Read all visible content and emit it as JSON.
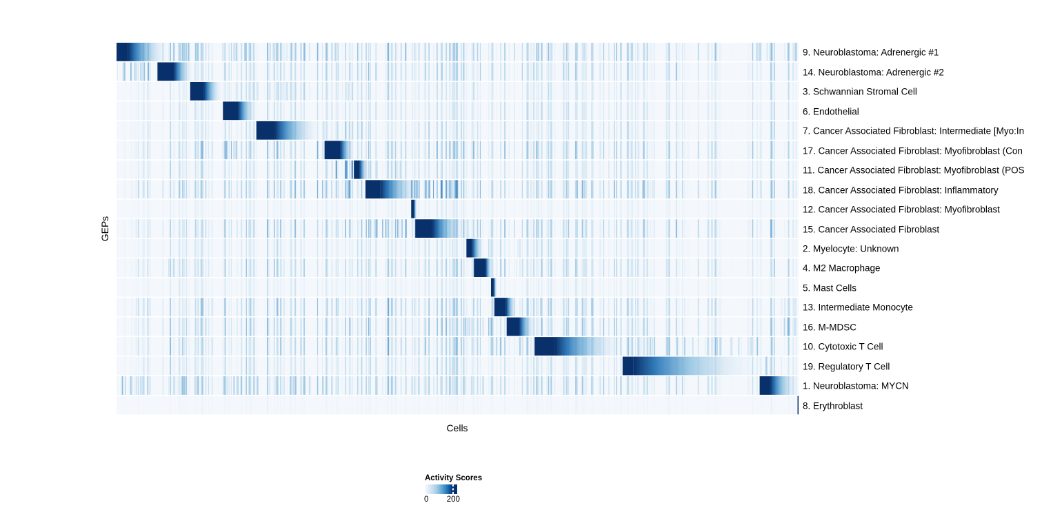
{
  "figure": {
    "background": "#ffffff"
  },
  "legend": {
    "title": "Activity Scores",
    "min_label": "0",
    "tick_label": "200",
    "tick_fraction": 0.88,
    "gradient_stops": [
      [
        0,
        "#f7fbff"
      ],
      [
        0.12,
        "#deebf7"
      ],
      [
        0.25,
        "#c6dbef"
      ],
      [
        0.38,
        "#9ecae1"
      ],
      [
        0.5,
        "#6baed6"
      ],
      [
        0.6,
        "#4292c6"
      ],
      [
        0.7,
        "#2171b5"
      ],
      [
        0.78,
        "#08519c"
      ],
      [
        0.86,
        "#08306b"
      ],
      [
        1,
        "#08306b"
      ]
    ]
  },
  "chart_data": {
    "type": "heatmap",
    "title": "",
    "xlabel": "Cells",
    "ylabel": "GEPs",
    "colormap": "Blues",
    "colorbar": {
      "label": "Activity Scores",
      "min": 0,
      "tick": 200
    },
    "background": "#f4f8fc",
    "dark_color": "#08306b",
    "seed": 13,
    "striation_base": 0.18,
    "striation_bands": [
      {
        "center": 0.1,
        "width": 0.1,
        "strength": 0.45
      },
      {
        "center": 0.25,
        "width": 0.09,
        "strength": 0.4
      },
      {
        "center": 0.4,
        "width": 0.09,
        "strength": 0.45
      },
      {
        "center": 0.53,
        "width": 0.06,
        "strength": 0.5
      },
      {
        "center": 0.63,
        "width": 0.05,
        "strength": 0.45
      },
      {
        "center": 0.72,
        "width": 0.05,
        "strength": 0.4
      },
      {
        "center": 0.81,
        "width": 0.05,
        "strength": 0.5
      },
      {
        "center": 0.91,
        "width": 0.035,
        "strength": 0.55
      },
      {
        "center": 0.975,
        "width": 0.025,
        "strength": 0.65
      }
    ],
    "rows": [
      {
        "label": "9. Neuroblastoma: Adrenergic #1",
        "block": {
          "start": 0.0,
          "dark_end": 0.017,
          "tail_end": 0.077
        },
        "noise": 0.85,
        "clusters": [
          {
            "start": 0.03,
            "end": 0.33,
            "strength": 0.5
          },
          {
            "start": 0.93,
            "end": 1.0,
            "strength": 0.45
          }
        ]
      },
      {
        "label": "14. Neuroblastoma: Adrenergic #2",
        "block": {
          "start": 0.06,
          "dark_end": 0.084,
          "tail_end": 0.112
        },
        "noise": 0.75,
        "clusters": [
          {
            "start": 0.0,
            "end": 0.058,
            "strength": 0.65
          }
        ]
      },
      {
        "label": "3. Schwannian Stromal Cell",
        "block": {
          "start": 0.108,
          "dark_end": 0.128,
          "tail_end": 0.155
        },
        "noise": 0.5,
        "clusters": [
          {
            "start": 0.16,
            "end": 0.35,
            "strength": 0.3
          }
        ]
      },
      {
        "label": "6. Endothelial",
        "block": {
          "start": 0.156,
          "dark_end": 0.178,
          "tail_end": 0.205
        },
        "noise": 0.55,
        "clusters": []
      },
      {
        "label": "7. Cancer Associated Fibroblast: Intermediate [Myo:In",
        "block": {
          "start": 0.205,
          "dark_end": 0.232,
          "tail_end": 0.299
        },
        "noise": 0.6,
        "clusters": [
          {
            "start": 0.3,
            "end": 0.37,
            "strength": 0.35
          }
        ]
      },
      {
        "label": "17. Cancer Associated Fibroblast: Myofibroblast (Con",
        "block": {
          "start": 0.305,
          "dark_end": 0.328,
          "tail_end": 0.349
        },
        "noise": 0.85,
        "clusters": [
          {
            "start": 0.145,
            "end": 0.175,
            "strength": 0.75
          },
          {
            "start": 0.29,
            "end": 0.305,
            "strength": 0.5
          }
        ]
      },
      {
        "label": "11. Cancer Associated Fibroblast: Myofibroblast (POS",
        "block": {
          "start": 0.348,
          "dark_end": 0.356,
          "tail_end": 0.37
        },
        "noise": 0.6,
        "clusters": [
          {
            "start": 0.315,
            "end": 0.345,
            "strength": 0.85
          },
          {
            "start": 0.37,
            "end": 0.43,
            "strength": 0.4
          }
        ]
      },
      {
        "label": "18. Cancer Associated Fibroblast: Inflammatory",
        "block": {
          "start": 0.365,
          "dark_end": 0.387,
          "tail_end": 0.448
        },
        "noise": 0.95,
        "clusters": [
          {
            "start": 0.3,
            "end": 0.35,
            "strength": 0.6
          },
          {
            "start": 0.43,
            "end": 0.5,
            "strength": 0.8
          },
          {
            "start": 0.77,
            "end": 0.8,
            "strength": 0.4
          }
        ]
      },
      {
        "label": "12. Cancer Associated Fibroblast: Myofibroblast",
        "block": {
          "start": 0.432,
          "dark_end": 0.436,
          "tail_end": 0.441
        },
        "noise": 0.3,
        "clusters": []
      },
      {
        "label": "15. Cancer Associated Fibroblast",
        "block": {
          "start": 0.438,
          "dark_end": 0.463,
          "tail_end": 0.512
        },
        "noise": 0.85,
        "clusters": [
          {
            "start": 0.36,
            "end": 0.43,
            "strength": 0.7
          },
          {
            "start": 0.51,
            "end": 0.56,
            "strength": 0.45
          }
        ]
      },
      {
        "label": "2. Myelocyte: Unknown",
        "block": {
          "start": 0.513,
          "dark_end": 0.521,
          "tail_end": 0.539
        },
        "noise": 0.5,
        "clusters": [
          {
            "start": 0.54,
            "end": 0.6,
            "strength": 0.4
          }
        ]
      },
      {
        "label": "4. M2 Macrophage",
        "block": {
          "start": 0.524,
          "dark_end": 0.541,
          "tail_end": 0.552
        },
        "noise": 0.7,
        "clusters": [
          {
            "start": 0.555,
            "end": 0.595,
            "strength": 0.7
          },
          {
            "start": 0.06,
            "end": 0.09,
            "strength": 0.4
          }
        ]
      },
      {
        "label": "5. Mast Cells",
        "block": {
          "start": 0.549,
          "dark_end": 0.553,
          "tail_end": 0.558
        },
        "noise": 0.35,
        "clusters": []
      },
      {
        "label": "13. Intermediate Monocyte",
        "block": {
          "start": 0.554,
          "dark_end": 0.571,
          "tail_end": 0.587
        },
        "noise": 0.8,
        "clusters": [
          {
            "start": 0.59,
            "end": 0.63,
            "strength": 0.5
          },
          {
            "start": 0.96,
            "end": 1.0,
            "strength": 0.5
          }
        ]
      },
      {
        "label": "16. M-MDSC",
        "block": {
          "start": 0.572,
          "dark_end": 0.59,
          "tail_end": 0.614
        },
        "noise": 0.8,
        "clusters": [
          {
            "start": 0.51,
            "end": 0.57,
            "strength": 0.6
          },
          {
            "start": 0.96,
            "end": 1.0,
            "strength": 0.45
          }
        ]
      },
      {
        "label": "10. Cytotoxic T Cell",
        "block": {
          "start": 0.613,
          "dark_end": 0.643,
          "tail_end": 0.744
        },
        "noise": 0.8,
        "clusters": [
          {
            "start": 0.745,
            "end": 0.94,
            "strength": 0.5
          },
          {
            "start": 0.52,
            "end": 0.61,
            "strength": 0.45
          }
        ]
      },
      {
        "label": "19. Regulatory T Cell",
        "block": {
          "start": 0.742,
          "dark_end": 0.758,
          "tail_end": 0.943
        },
        "noise": 0.6,
        "clusters": [
          {
            "start": 0.945,
            "end": 0.975,
            "strength": 0.55
          }
        ]
      },
      {
        "label": "1. Neuroblastoma: MYCN",
        "block": {
          "start": 0.943,
          "dark_end": 0.958,
          "tail_end": 1.0
        },
        "noise": 0.8,
        "clusters": [
          {
            "start": 0.0,
            "end": 0.33,
            "strength": 0.5
          },
          {
            "start": 0.38,
            "end": 0.57,
            "strength": 0.35
          }
        ]
      },
      {
        "label": "8. Erythroblast",
        "block": {
          "start": 0.9985,
          "dark_end": 1.0,
          "tail_end": 1.0
        },
        "noise": 0.12,
        "clusters": []
      }
    ]
  }
}
